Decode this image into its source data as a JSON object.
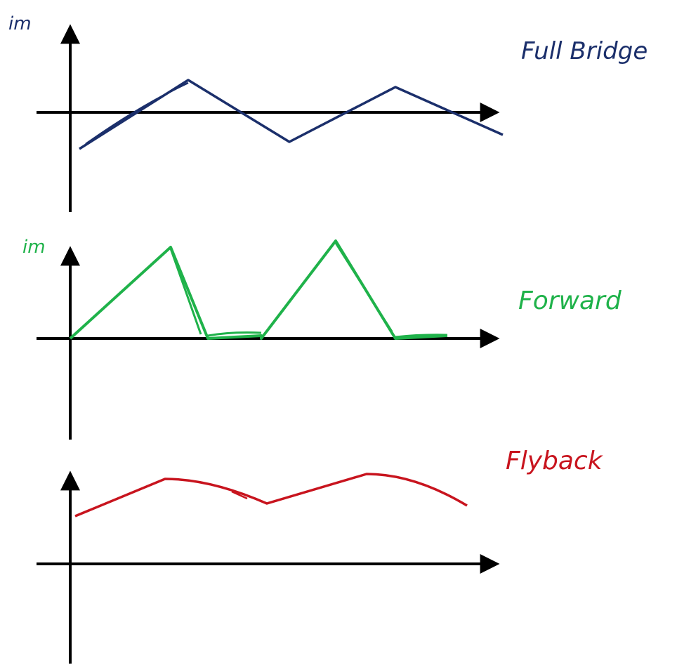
{
  "panels": [
    {
      "id": "full-bridge",
      "title": "Full Bridge",
      "ylabel": "im",
      "color": "#1b2f6b",
      "waveform": "triangular magnetizing current symmetric about zero"
    },
    {
      "id": "forward",
      "title": "Forward",
      "ylabel": "im",
      "color": "#1fb24a",
      "waveform": "ramp up from zero, fall to zero, idle at zero, repeat"
    },
    {
      "id": "flyback",
      "title": "Flyback",
      "ylabel": "",
      "color": "#c8141e",
      "waveform": "current with DC offset, rising and falling above zero"
    }
  ]
}
